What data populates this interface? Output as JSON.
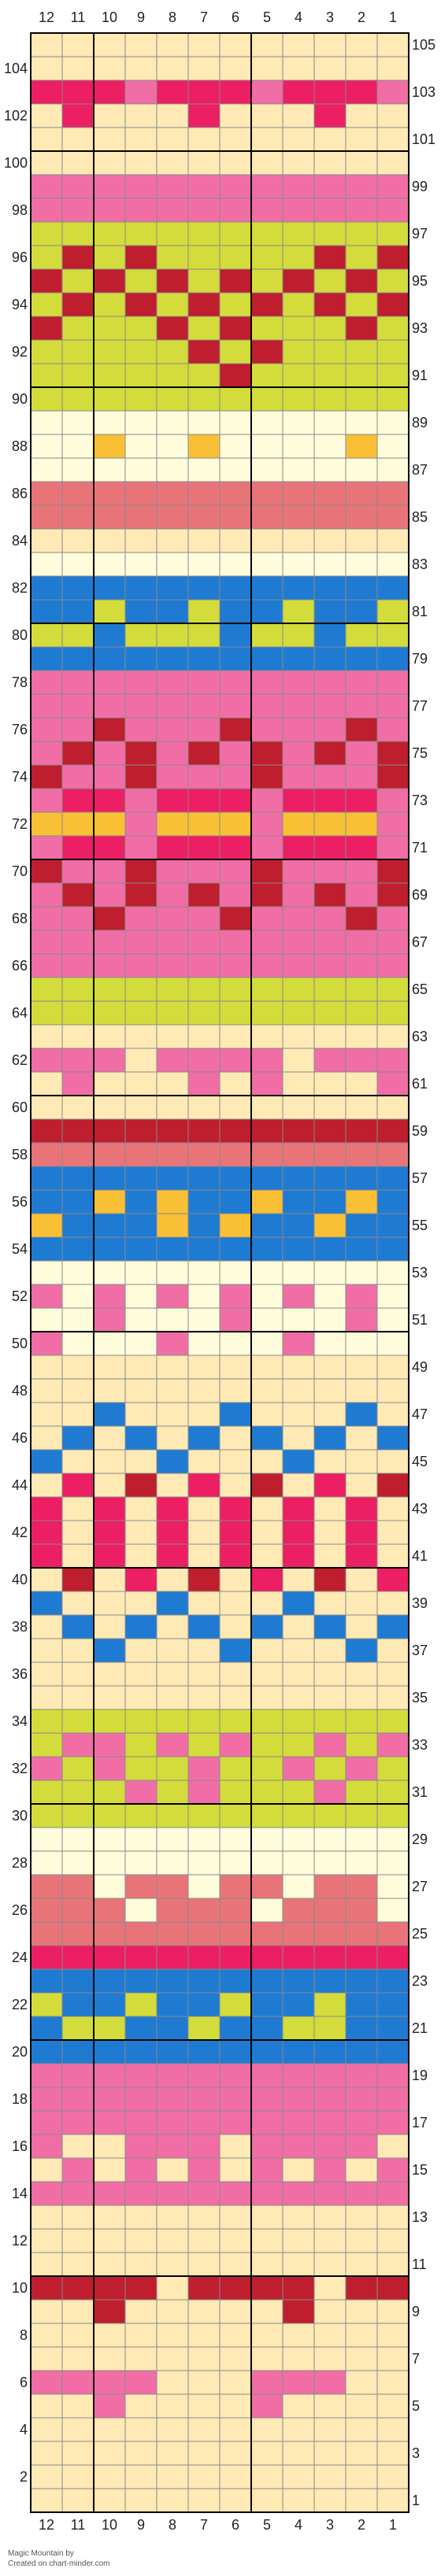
{
  "chart_data": {
    "type": "heatmap",
    "columns": [
      "12",
      "11",
      "10",
      "9",
      "8",
      "7",
      "6",
      "5",
      "4",
      "3",
      "2",
      "1"
    ],
    "rows": [
      "1",
      "2",
      "3",
      "4",
      "5",
      "6",
      "7",
      "8",
      "9",
      "10",
      "11",
      "12",
      "13",
      "14",
      "15",
      "16",
      "17",
      "18",
      "19",
      "20",
      "21",
      "22",
      "23",
      "24",
      "25",
      "26",
      "27",
      "28",
      "29",
      "30",
      "31",
      "32",
      "33",
      "34",
      "35",
      "36",
      "37",
      "38",
      "39",
      "40",
      "41",
      "42",
      "43",
      "44",
      "45",
      "46",
      "47",
      "48",
      "49",
      "50",
      "51",
      "52",
      "53",
      "54",
      "55",
      "56",
      "57",
      "58",
      "59",
      "60",
      "61",
      "62",
      "63",
      "64",
      "65",
      "66",
      "67",
      "68",
      "69",
      "70",
      "71",
      "72",
      "73",
      "74",
      "75",
      "76",
      "77",
      "78",
      "79",
      "80",
      "81",
      "82",
      "83",
      "84",
      "85",
      "86",
      "87",
      "88",
      "89",
      "90",
      "91",
      "92",
      "93",
      "94",
      "95",
      "96",
      "97",
      "98",
      "99",
      "100",
      "101",
      "102",
      "103",
      "104",
      "105"
    ],
    "palette": {
      "A": "#FFE9B5",
      "B": "#F06EA5",
      "C": "#EC1E64",
      "D": "#1F7AD2",
      "E": "#D3DC3A",
      "F": "#BE1E2D",
      "G": "#F9C035",
      "H": "#FFFCDC",
      "I": "#E8747A"
    },
    "grid_rows": [
      "AAAAAAAAAAAA",
      "AAAAAAAAAAAA",
      "CCCBCCCBCCCB",
      "ACAAACAAACAA",
      "AAAAAAAAAAAA",
      "AAAAAAAAAAAA",
      "BBBBBBBBBBBB",
      "BBBBBBBBBBBB",
      "EEEEEEEEEEEE",
      "EFEFEEEEEFEF",
      "FEFEFEFEFEFE",
      "EFEFEFEFEFEF",
      "FEEEFEFEEEFE",
      "EEEEEFEFEEEE",
      "EEEEEEFEEEEE",
      "EEEEEEEEEEEE",
      "HHHHHHHHHHHH",
      "HHGHHGHHHHGH",
      "HHHHHHHHHHHH",
      "IIIIIIIIIIII",
      "IIIIIIIIIIII",
      "AAAAAAAAAAAA",
      "HHHHHHHHHHHH",
      "DDDDDDDDDDDD",
      "DDEDDEDDEDDE",
      "EEDEEEDEEDEE",
      "DDDDDDDDDDDD",
      "BBBBBBBBBBBB",
      "BBBBBBBBBBBB",
      "BBFBBBFBBBFB",
      "BFBFBFBFBFBF",
      "FBBFBBBFBBBF",
      "BCCBCCCBCCCB",
      "GGGBGGGBGGGB",
      "BCCBCCCBCCCB",
      "FBBFBBBFBBBF",
      "BFBFBFBFBFBF",
      "BBFBBBFBBBFB",
      "BBBBBBBBBBBB",
      "BBBBBBBBBBBB",
      "EEEEEEEEEEEE",
      "EEEEEEEEEEEE",
      "AAAAAAAAAAAA",
      "BBBABBBBABBB",
      "ABAAABABAAAB",
      "AAAAAAAAAAAA",
      "FFFFFFFFFFFF",
      "IIIIIIIIIIII",
      "DDDDDDDDDDDD",
      "DDGDGDDGDDGD",
      "GDDDGDGDDGDD",
      "DDDDDDDDDDDD",
      "HHHHHHHHHHHH",
      "BHBHBHBHBHBH",
      "HHBHHHBHHHBH",
      "BHHHBHHHBHHH",
      "AAAAAAAAAAAA",
      "AAAAAAAAAAAA",
      "AADAAADAAADA",
      "ADADADADADAD",
      "DAAADAAADAAA",
      "ACAFACAFACAF",
      "CACACACACACA",
      "CACACACACACA",
      "CACACACACACA",
      "AFACAFACAFAC",
      "DAAADAAADAAA",
      "ADADADADADAD",
      "AADAAADAAADA",
      "AAAAAAAAAAAA",
      "AAAAAAAAAAAA",
      "EEEEEEEEEEEE",
      "EBBEBEBEEBEB",
      "BEBEEBEEBEBE",
      "EEEBEBEEEBEE",
      "EEEEEEEEEEEE",
      "HHHHHHHHHHHH",
      "HHHHHHHHHHHH",
      "IIHIIHIIHIIH",
      "IIIHIIIHIIIH",
      "IIIIIIIIIIII",
      "CCCCCCCCCCCC",
      "DDDDDDDDDDDD",
      "EDDEDDEDDEDD",
      "DEEDDEDDEEDD",
      "DDDDDDDDDDDD",
      "BBBBBBBBBBBB",
      "BBBBBBBBBBBB",
      "BBBBBBBBBBBB",
      "BAABBBABBBBA",
      "ABABABABABAB",
      "BBBBBBBBBBBB",
      "AAAAAAAAAAAA",
      "AAAAAAAAAAAA",
      "AAAAAAAAAAAA",
      "FFFFAFFFFAFF",
      "AAFAAAAAFAAA",
      "AAAAAAAAAAAA",
      "AAAAAAAAAAAA",
      "BBBBAAABBBAA",
      "AABAAAABAAAA",
      "AAAAAAAAAAAA",
      "AAAAAAAAAAAA",
      "AAAAAAAAAAAA",
      "AAAAAAAAAAAA"
    ]
  },
  "footer": {
    "title": "Magic Mountain by",
    "credit": "Created on chart-minder.com"
  }
}
